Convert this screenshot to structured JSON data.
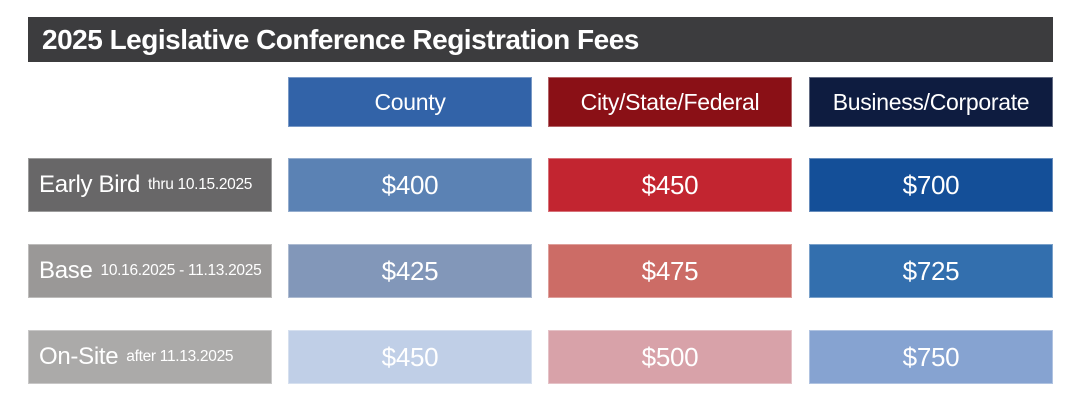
{
  "title_bar": {
    "text": "2025 Legislative Conference Registration Fees",
    "color": "#3c3c3e",
    "text_color": "#ffffff"
  },
  "columns": [
    {
      "label": "County",
      "header_color": "#3263a8"
    },
    {
      "label": "City/State/Federal",
      "header_color": "#8a1016"
    },
    {
      "label": "Business/Corporate",
      "header_color": "#0e1c40"
    }
  ],
  "rows": [
    {
      "label": "Early Bird",
      "sublabel": "thru 10.15.2025",
      "label_color": "#686768",
      "cells": [
        {
          "value": "$400",
          "color": "#5b82b4"
        },
        {
          "value": "$450",
          "color": "#c22530"
        },
        {
          "value": "$700",
          "color": "#144f98"
        }
      ]
    },
    {
      "label": "Base",
      "sublabel": "10.16.2025 - 11.13.2025",
      "label_color": "#9a9897",
      "cells": [
        {
          "value": "$425",
          "color": "#8297b9"
        },
        {
          "value": "$475",
          "color": "#cc6c66"
        },
        {
          "value": "$725",
          "color": "#336fae"
        }
      ]
    },
    {
      "label": "On-Site",
      "sublabel": "after 11.13.2025",
      "label_color": "#abaaa9",
      "cells": [
        {
          "value": "$450",
          "color": "#c0cfe7"
        },
        {
          "value": "$500",
          "color": "#d8a2a9"
        },
        {
          "value": "$750",
          "color": "#86a3d1"
        }
      ]
    }
  ],
  "chart_data": {
    "type": "table",
    "title": "2025 Legislative Conference Registration Fees",
    "columns": [
      "County",
      "City/State/Federal",
      "Business/Corporate"
    ],
    "rows": [
      {
        "tier": "Early Bird",
        "period": "thru 10.15.2025",
        "fees": [
          400,
          450,
          700
        ]
      },
      {
        "tier": "Base",
        "period": "10.16.2025 - 11.13.2025",
        "fees": [
          425,
          475,
          725
        ]
      },
      {
        "tier": "On-Site",
        "period": "after 11.13.2025",
        "fees": [
          450,
          500,
          750
        ]
      }
    ]
  }
}
